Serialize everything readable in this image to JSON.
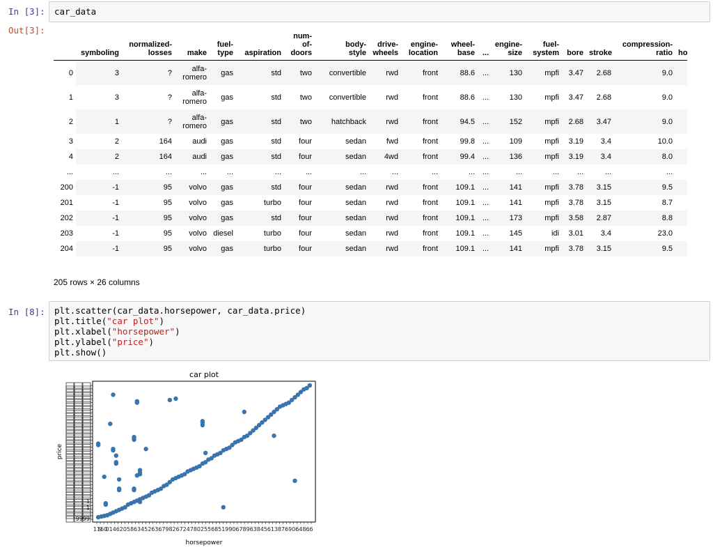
{
  "cell1": {
    "in_prompt": "In [3]:",
    "code": "car_data",
    "out_prompt": "Out[3]:"
  },
  "dataframe": {
    "columns": [
      "",
      "symboling",
      "normalized-\nlosses",
      "make",
      "fuel-\ntype",
      "aspiration",
      "num-\nof-\ndoors",
      "body-\nstyle",
      "drive-\nwheels",
      "engine-\nlocation",
      "wheel-\nbase",
      "...",
      "engine-\nsize",
      "fuel-\nsystem",
      "bore",
      "stroke",
      "compression-\nratio",
      "horsepo"
    ],
    "rows": [
      [
        "0",
        "3",
        "?",
        "alfa-\nromero",
        "gas",
        "std",
        "two",
        "convertible",
        "rwd",
        "front",
        "88.6",
        "...",
        "130",
        "mpfi",
        "3.47",
        "2.68",
        "9.0",
        ""
      ],
      [
        "1",
        "3",
        "?",
        "alfa-\nromero",
        "gas",
        "std",
        "two",
        "convertible",
        "rwd",
        "front",
        "88.6",
        "...",
        "130",
        "mpfi",
        "3.47",
        "2.68",
        "9.0",
        ""
      ],
      [
        "2",
        "1",
        "?",
        "alfa-\nromero",
        "gas",
        "std",
        "two",
        "hatchback",
        "rwd",
        "front",
        "94.5",
        "...",
        "152",
        "mpfi",
        "2.68",
        "3.47",
        "9.0",
        ""
      ],
      [
        "3",
        "2",
        "164",
        "audi",
        "gas",
        "std",
        "four",
        "sedan",
        "fwd",
        "front",
        "99.8",
        "...",
        "109",
        "mpfi",
        "3.19",
        "3.4",
        "10.0",
        ""
      ],
      [
        "4",
        "2",
        "164",
        "audi",
        "gas",
        "std",
        "four",
        "sedan",
        "4wd",
        "front",
        "99.4",
        "...",
        "136",
        "mpfi",
        "3.19",
        "3.4",
        "8.0",
        ""
      ],
      [
        "...",
        "...",
        "...",
        "...",
        "...",
        "...",
        "...",
        "...",
        "...",
        "...",
        "...",
        "...",
        "...",
        "...",
        "...",
        "...",
        "...",
        ""
      ],
      [
        "200",
        "-1",
        "95",
        "volvo",
        "gas",
        "std",
        "four",
        "sedan",
        "rwd",
        "front",
        "109.1",
        "...",
        "141",
        "mpfi",
        "3.78",
        "3.15",
        "9.5",
        ""
      ],
      [
        "201",
        "-1",
        "95",
        "volvo",
        "gas",
        "turbo",
        "four",
        "sedan",
        "rwd",
        "front",
        "109.1",
        "...",
        "141",
        "mpfi",
        "3.78",
        "3.15",
        "8.7",
        ""
      ],
      [
        "202",
        "-1",
        "95",
        "volvo",
        "gas",
        "std",
        "four",
        "sedan",
        "rwd",
        "front",
        "109.1",
        "...",
        "173",
        "mpfi",
        "3.58",
        "2.87",
        "8.8",
        ""
      ],
      [
        "203",
        "-1",
        "95",
        "volvo",
        "diesel",
        "turbo",
        "four",
        "sedan",
        "rwd",
        "front",
        "109.1",
        "...",
        "145",
        "idi",
        "3.01",
        "3.4",
        "23.0",
        ""
      ],
      [
        "204",
        "-1",
        "95",
        "volvo",
        "gas",
        "turbo",
        "four",
        "sedan",
        "rwd",
        "front",
        "109.1",
        "...",
        "141",
        "mpfi",
        "3.78",
        "3.15",
        "9.5",
        ""
      ]
    ],
    "summary": "205 rows × 26 columns"
  },
  "cell2": {
    "in_prompt": "In [8]:",
    "lines": [
      {
        "pre": "plt.scatter(car_data.horsepower, car_data.price)",
        "str": "",
        "post": ""
      },
      {
        "pre": "plt.title(",
        "str": "\"car plot\"",
        "post": ")"
      },
      {
        "pre": "plt.xlabel(",
        "str": "\"horsepower\"",
        "post": ")"
      },
      {
        "pre": "plt.ylabel(",
        "str": "\"price\"",
        "post": ")"
      },
      {
        "pre": "plt.show()",
        "str": "",
        "post": ""
      }
    ]
  },
  "chart_data": {
    "type": "scatter",
    "title": "car plot",
    "xlabel": "horsepower",
    "ylabel": "price",
    "color": "#3a74ad",
    "x_tick_labels_visible": [
      "11",
      "9",
      "60",
      "0",
      "1",
      "4",
      "6",
      "2",
      "0",
      "5",
      "8",
      "6",
      "3",
      "4",
      "5",
      "2",
      "6",
      "3",
      "6",
      "7",
      "9",
      "8",
      "2",
      "6",
      "7",
      "2",
      "4",
      "7",
      "8",
      "0",
      "2",
      "5",
      "5",
      "6",
      "8",
      "5",
      "1",
      "9",
      "9",
      "0",
      "6",
      "7",
      "8",
      "9",
      "6",
      "3",
      "8",
      "4",
      "5",
      "6",
      "1",
      "3",
      "8",
      "7",
      "6",
      "9",
      "0",
      "6",
      "4",
      "8",
      "6",
      "6"
    ],
    "y_tick_labels_visible": [
      "1",
      "1",
      "9999"
    ],
    "series": [
      {
        "name": "",
        "points": [
          [
            0.5,
            0.5
          ],
          [
            1.5,
            1
          ],
          [
            2.5,
            1.5
          ],
          [
            3.5,
            2
          ],
          [
            4.5,
            3
          ],
          [
            5.5,
            4
          ],
          [
            6.5,
            5
          ],
          [
            7.5,
            6
          ],
          [
            8.5,
            7
          ],
          [
            9.5,
            8
          ],
          [
            10.5,
            10
          ],
          [
            11.5,
            11
          ],
          [
            12.5,
            12
          ],
          [
            13.5,
            13
          ],
          [
            14.5,
            14
          ],
          [
            15.5,
            15
          ],
          [
            16.5,
            16
          ],
          [
            17.5,
            17
          ],
          [
            18.5,
            19
          ],
          [
            19.5,
            20
          ],
          [
            20.5,
            21
          ],
          [
            21.5,
            22
          ],
          [
            22.5,
            24
          ],
          [
            23.5,
            25
          ],
          [
            24.5,
            27
          ],
          [
            25.5,
            29
          ],
          [
            26.5,
            30
          ],
          [
            27.5,
            31
          ],
          [
            28.5,
            32
          ],
          [
            29.5,
            33
          ],
          [
            30.5,
            35
          ],
          [
            31.5,
            36
          ],
          [
            32.5,
            37
          ],
          [
            33.5,
            38
          ],
          [
            34.5,
            39
          ],
          [
            35.5,
            41
          ],
          [
            36.5,
            42
          ],
          [
            37.5,
            44
          ],
          [
            38.5,
            45
          ],
          [
            39.5,
            47
          ],
          [
            40.5,
            48
          ],
          [
            41.5,
            49
          ],
          [
            42.5,
            51
          ],
          [
            43.5,
            52
          ],
          [
            44.5,
            53
          ],
          [
            45.5,
            55
          ],
          [
            46.5,
            57
          ],
          [
            47.5,
            58
          ],
          [
            48.5,
            59
          ],
          [
            49.5,
            61
          ],
          [
            50.5,
            62
          ],
          [
            51.5,
            64
          ],
          [
            52.5,
            66
          ],
          [
            53.5,
            68
          ],
          [
            54.5,
            70
          ],
          [
            55.5,
            72
          ],
          [
            56.5,
            74
          ],
          [
            57.5,
            76
          ],
          [
            58.5,
            78
          ],
          [
            59.5,
            80
          ],
          [
            60.5,
            82
          ],
          [
            61.5,
            84
          ],
          [
            62.5,
            85
          ],
          [
            63.5,
            86
          ],
          [
            64.5,
            87
          ],
          [
            65.5,
            89
          ],
          [
            66.5,
            91
          ],
          [
            67.5,
            93
          ],
          [
            68.5,
            95
          ],
          [
            69.5,
            97
          ],
          [
            70.5,
            98
          ],
          [
            71.5,
            100
          ],
          [
            0.5,
            55
          ],
          [
            0.5,
            56
          ],
          [
            2.5,
            31
          ],
          [
            3.0,
            10
          ],
          [
            3.0,
            11
          ],
          [
            4.5,
            71
          ],
          [
            5.5,
            93
          ],
          [
            5.5,
            52
          ],
          [
            5.5,
            51
          ],
          [
            6.5,
            47
          ],
          [
            6.5,
            42
          ],
          [
            6.5,
            41
          ],
          [
            7.5,
            22
          ],
          [
            7.5,
            21
          ],
          [
            7.5,
            29
          ],
          [
            12.5,
            60
          ],
          [
            12.5,
            61
          ],
          [
            12.5,
            59
          ],
          [
            13.5,
            88
          ],
          [
            13.5,
            87
          ],
          [
            12.5,
            21
          ],
          [
            12.5,
            22
          ],
          [
            13.5,
            32
          ],
          [
            14.5,
            33
          ],
          [
            14.5,
            34
          ],
          [
            14.5,
            12
          ],
          [
            14.5,
            36
          ],
          [
            16.5,
            52
          ],
          [
            24.5,
            89
          ],
          [
            26.5,
            90
          ],
          [
            35.5,
            73
          ],
          [
            35.5,
            72
          ],
          [
            35.5,
            70
          ],
          [
            36.5,
            49
          ],
          [
            42.5,
            8
          ],
          [
            49.5,
            80
          ],
          [
            59.5,
            62
          ],
          [
            66.5,
            28
          ]
        ]
      }
    ],
    "xlim": [
      0,
      72
    ],
    "ylim": [
      0,
      100
    ]
  }
}
